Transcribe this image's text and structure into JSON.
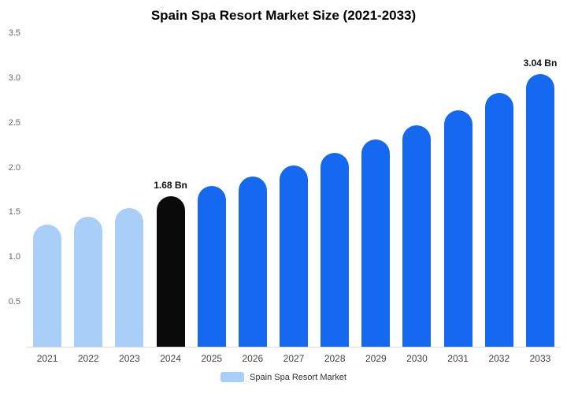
{
  "chart_data": {
    "type": "bar",
    "title": "Spain Spa Resort Market Size (2021-2033)",
    "categories": [
      "2021",
      "2022",
      "2023",
      "2024",
      "2025",
      "2026",
      "2027",
      "2028",
      "2029",
      "2030",
      "2031",
      "2032",
      "2033"
    ],
    "values": [
      1.36,
      1.45,
      1.55,
      1.68,
      1.79,
      1.9,
      2.02,
      2.16,
      2.31,
      2.47,
      2.64,
      2.83,
      3.04
    ],
    "unit": "Bn",
    "ylim": [
      0,
      3.5
    ],
    "yticks": [
      0.5,
      1.0,
      1.5,
      2.0,
      2.5,
      3.0,
      3.5
    ],
    "ytick_labels": [
      "0.5",
      "1.0",
      "1.5",
      "2.0",
      "2.5",
      "3.0",
      "3.5"
    ],
    "bar_colors": [
      "#a9cef7",
      "#a9cef7",
      "#a9cef7",
      "#0a0a0a",
      "#1569f0",
      "#1569f0",
      "#1569f0",
      "#1569f0",
      "#1569f0",
      "#1569f0",
      "#1569f0",
      "#1569f0",
      "#1569f0"
    ],
    "annotations": [
      {
        "index": 3,
        "text": "1.68 Bn"
      },
      {
        "index": 12,
        "text": "3.04 Bn"
      }
    ],
    "grid": false,
    "legend_position": "bottom",
    "legend": [
      {
        "label": "Spain Spa Resort Market",
        "color": "#a9cef7"
      }
    ]
  },
  "colors": {
    "light_blue": "#a9cef7",
    "highlight_black": "#0a0a0a",
    "primary_blue": "#1569f0",
    "axis_line": "#d9d9d9"
  }
}
